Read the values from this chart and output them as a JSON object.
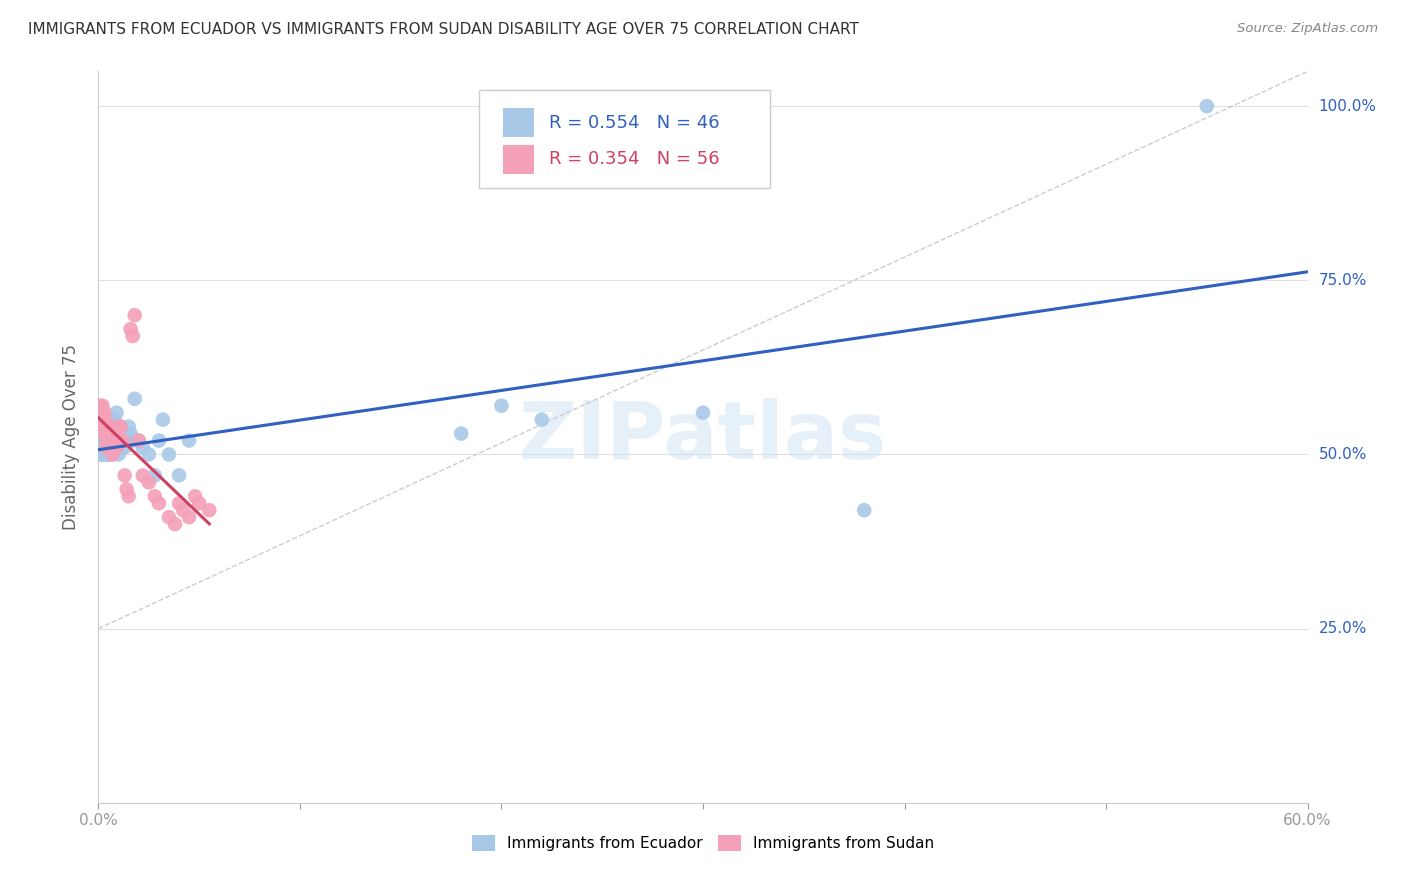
{
  "title": "IMMIGRANTS FROM ECUADOR VS IMMIGRANTS FROM SUDAN DISABILITY AGE OVER 75 CORRELATION CHART",
  "source": "Source: ZipAtlas.com",
  "ylabel": "Disability Age Over 75",
  "watermark": "ZIPatlas",
  "legend_ecuador_R": "0.554",
  "legend_ecuador_N": "46",
  "legend_sudan_R": "0.354",
  "legend_sudan_N": "56",
  "ecuador_color": "#a8c8e8",
  "sudan_color": "#f4a0b8",
  "ecuador_line_color": "#3060c0",
  "sudan_line_color": "#d04060",
  "diag_line_color": "#cccccc",
  "background_color": "#ffffff",
  "grid_color": "#e0e0e0",
  "ecuador_x": [
    0.001,
    0.002,
    0.002,
    0.003,
    0.003,
    0.003,
    0.004,
    0.004,
    0.004,
    0.005,
    0.005,
    0.005,
    0.006,
    0.006,
    0.006,
    0.007,
    0.007,
    0.007,
    0.008,
    0.008,
    0.008,
    0.009,
    0.01,
    0.01,
    0.011,
    0.012,
    0.013,
    0.015,
    0.016,
    0.017,
    0.018,
    0.02,
    0.022,
    0.025,
    0.028,
    0.03,
    0.032,
    0.035,
    0.04,
    0.045,
    0.18,
    0.2,
    0.22,
    0.3,
    0.38,
    0.55
  ],
  "ecuador_y": [
    0.5,
    0.52,
    0.5,
    0.51,
    0.5,
    0.52,
    0.5,
    0.51,
    0.53,
    0.5,
    0.52,
    0.51,
    0.5,
    0.52,
    0.51,
    0.54,
    0.52,
    0.5,
    0.53,
    0.55,
    0.51,
    0.56,
    0.52,
    0.5,
    0.54,
    0.52,
    0.51,
    0.54,
    0.53,
    0.52,
    0.58,
    0.52,
    0.51,
    0.5,
    0.47,
    0.52,
    0.55,
    0.5,
    0.47,
    0.52,
    0.53,
    0.57,
    0.55,
    0.56,
    0.42,
    1.0
  ],
  "sudan_x": [
    0.001,
    0.001,
    0.001,
    0.001,
    0.002,
    0.002,
    0.002,
    0.002,
    0.002,
    0.003,
    0.003,
    0.003,
    0.003,
    0.003,
    0.003,
    0.004,
    0.004,
    0.004,
    0.004,
    0.005,
    0.005,
    0.005,
    0.005,
    0.005,
    0.006,
    0.006,
    0.006,
    0.007,
    0.007,
    0.008,
    0.008,
    0.009,
    0.009,
    0.01,
    0.01,
    0.011,
    0.012,
    0.013,
    0.014,
    0.015,
    0.016,
    0.017,
    0.018,
    0.02,
    0.022,
    0.025,
    0.028,
    0.03,
    0.035,
    0.038,
    0.04,
    0.042,
    0.045,
    0.048,
    0.05,
    0.055
  ],
  "sudan_y": [
    0.56,
    0.55,
    0.57,
    0.56,
    0.56,
    0.55,
    0.57,
    0.54,
    0.55,
    0.54,
    0.55,
    0.56,
    0.55,
    0.53,
    0.54,
    0.53,
    0.52,
    0.54,
    0.51,
    0.52,
    0.53,
    0.52,
    0.51,
    0.53,
    0.52,
    0.51,
    0.52,
    0.54,
    0.5,
    0.53,
    0.51,
    0.52,
    0.51,
    0.52,
    0.54,
    0.54,
    0.52,
    0.47,
    0.45,
    0.44,
    0.68,
    0.67,
    0.7,
    0.52,
    0.47,
    0.46,
    0.44,
    0.43,
    0.41,
    0.4,
    0.43,
    0.42,
    0.41,
    0.44,
    0.43,
    0.42
  ],
  "xlim": [
    0.0,
    0.6
  ],
  "ylim": [
    0.0,
    1.05
  ],
  "xticks": [
    0.0,
    0.1,
    0.2,
    0.3,
    0.4,
    0.5,
    0.6
  ],
  "yticks": [
    0.0,
    0.25,
    0.5,
    0.75,
    1.0
  ],
  "ytick_labels": [
    "",
    "25.0%",
    "50.0%",
    "75.0%",
    "100.0%"
  ]
}
